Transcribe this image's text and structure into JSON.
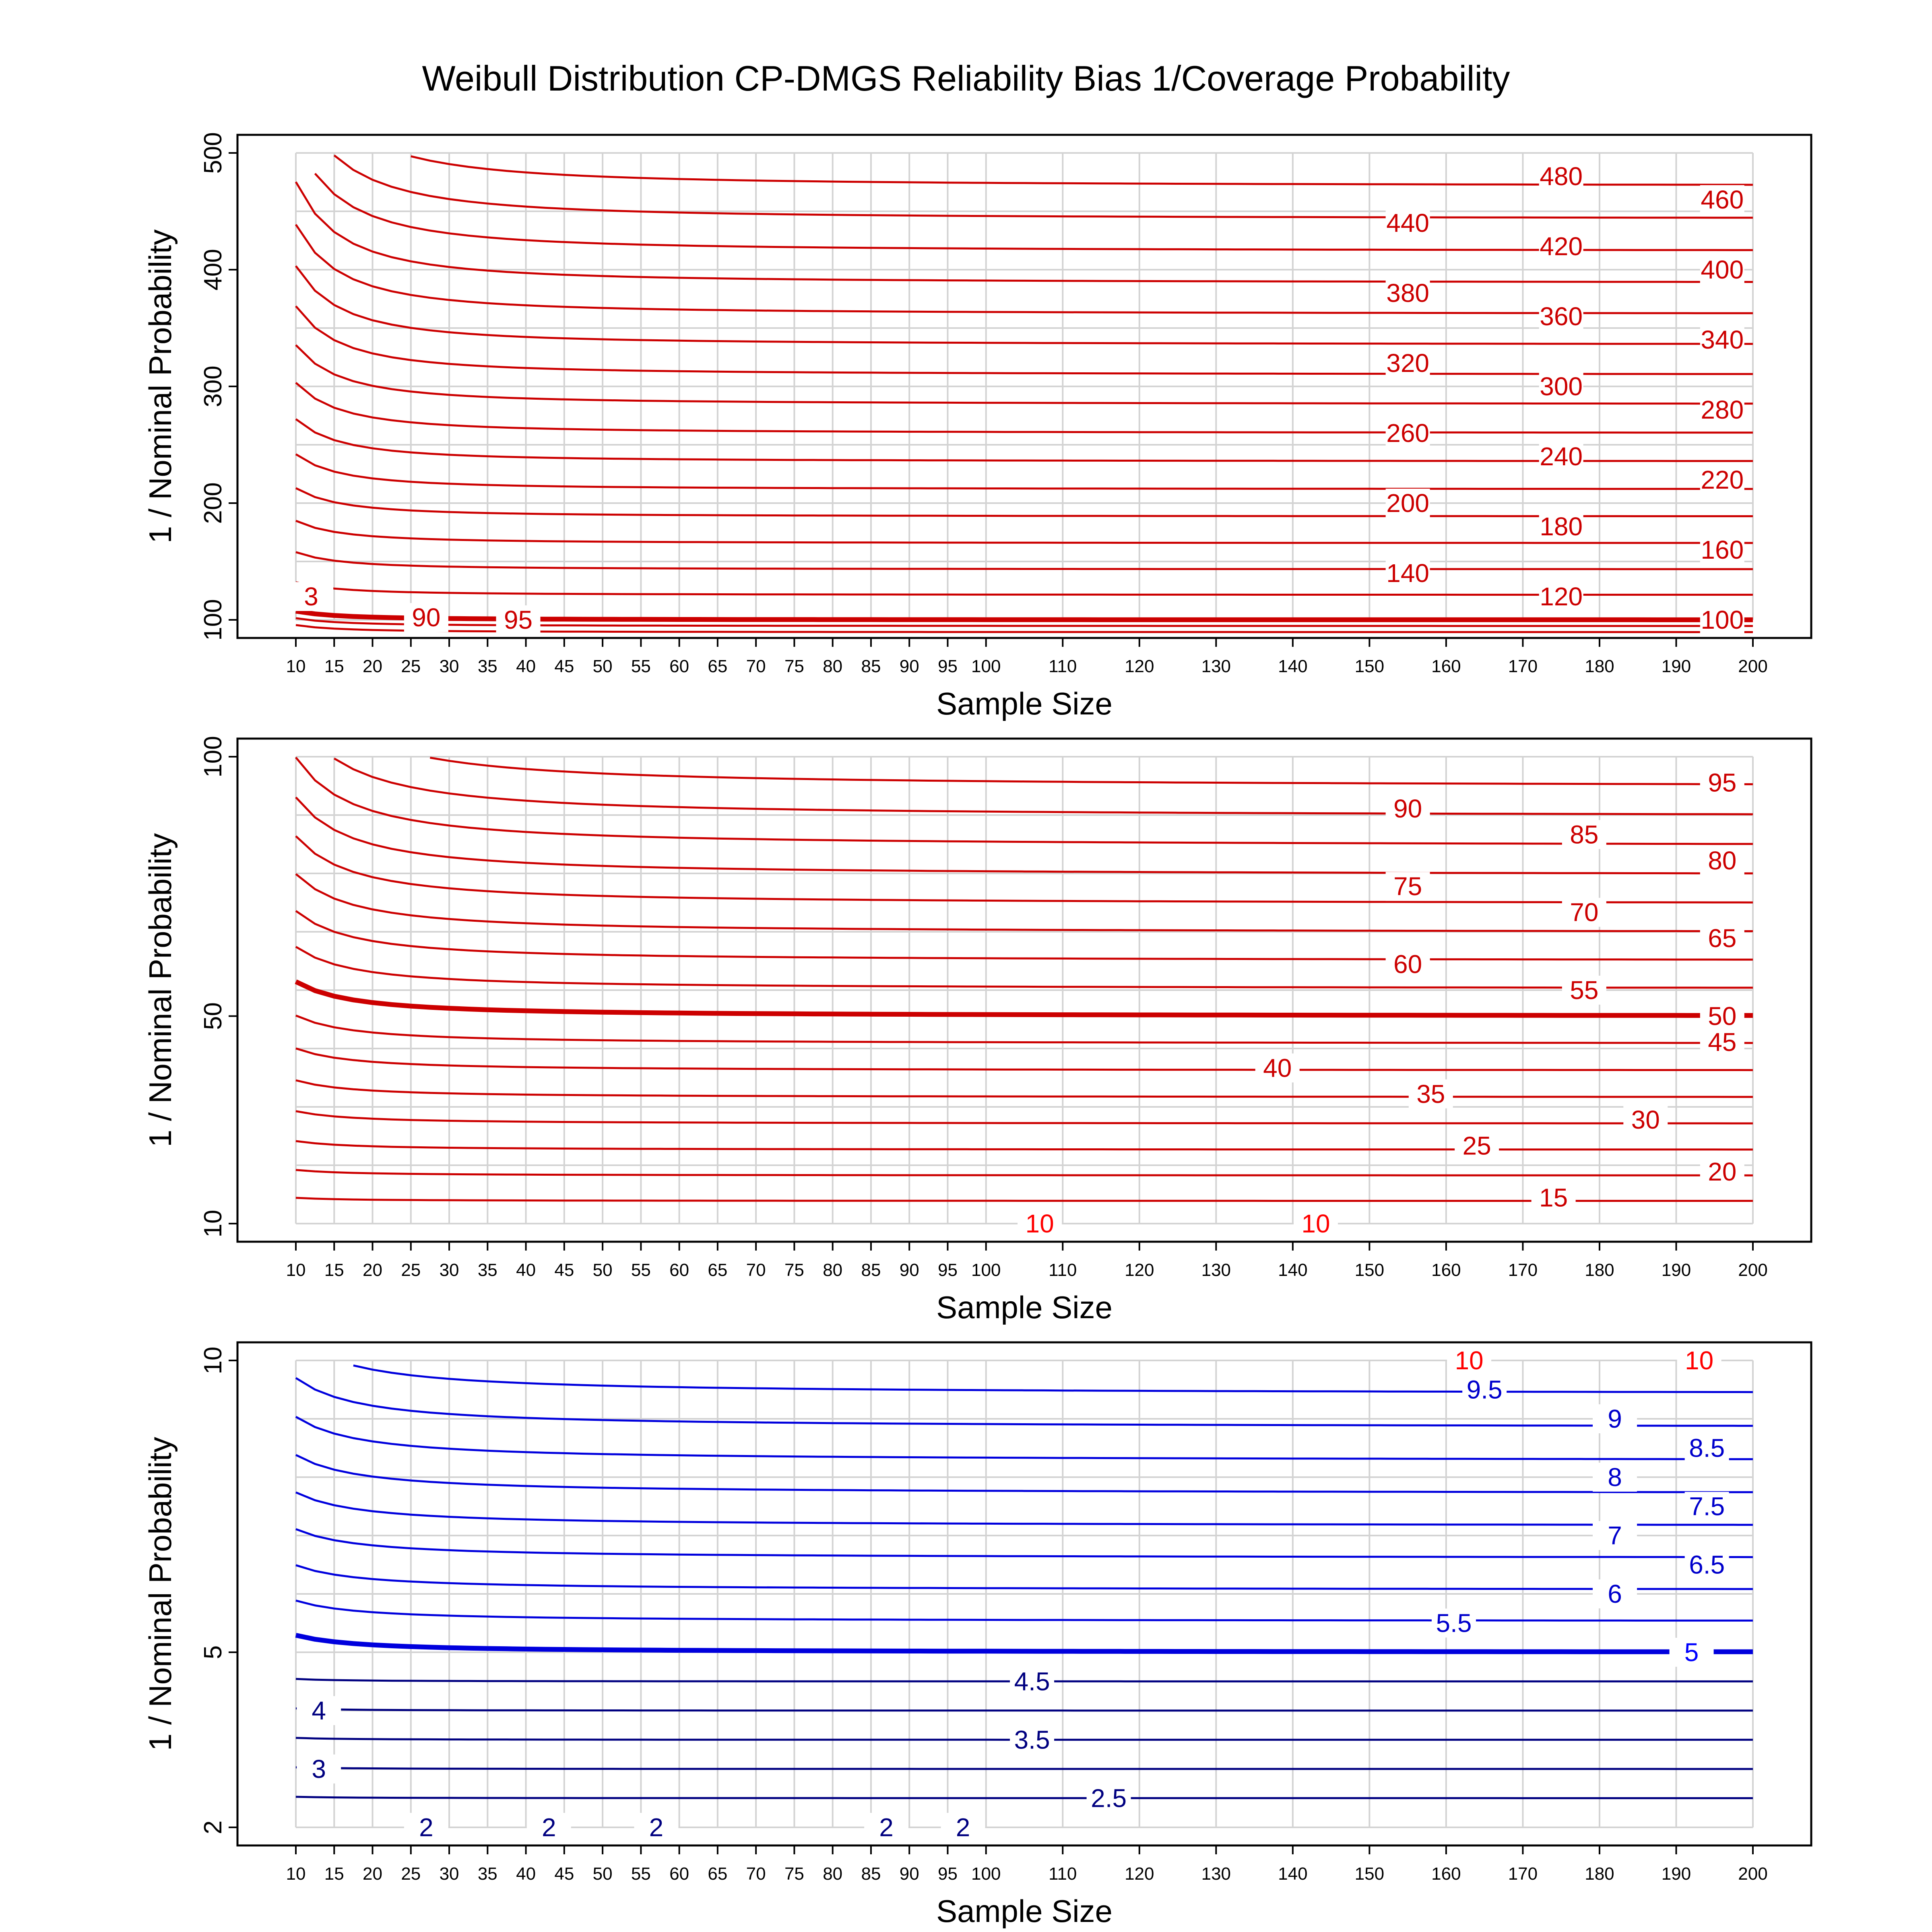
{
  "figure": {
    "title": "Weibull Distribution CP-DMGS Reliability Bias 1/Coverage Probability"
  },
  "chart_data": [
    {
      "type": "line",
      "subtype": "contour",
      "title": "",
      "xlabel": "Sample Size",
      "ylabel": "1 / Nominal Probability",
      "x_ticks": [
        10,
        15,
        20,
        25,
        30,
        35,
        40,
        45,
        50,
        55,
        60,
        65,
        70,
        75,
        80,
        85,
        90,
        95,
        100,
        110,
        120,
        130,
        140,
        150,
        160,
        170,
        180,
        190,
        200
      ],
      "xlim": [
        10,
        200
      ],
      "y_ticks": [
        100,
        200,
        300,
        400,
        500
      ],
      "ylim": [
        100,
        500
      ],
      "grid": true,
      "reference_level": 100,
      "contour_levels": [
        90,
        95,
        100,
        120,
        140,
        160,
        180,
        200,
        220,
        240,
        260,
        280,
        300,
        320,
        340,
        360,
        380,
        400,
        420,
        440,
        460,
        480
      ],
      "contour_labels": [
        {
          "text": "480",
          "x": 175,
          "y": 480,
          "color": "#cc0000"
        },
        {
          "text": "460",
          "x": 196,
          "y": 460,
          "color": "#cc0000"
        },
        {
          "text": "440",
          "x": 155,
          "y": 440,
          "color": "#cc0000"
        },
        {
          "text": "420",
          "x": 175,
          "y": 420,
          "color": "#cc0000"
        },
        {
          "text": "400",
          "x": 196,
          "y": 400,
          "color": "#cc0000"
        },
        {
          "text": "380",
          "x": 155,
          "y": 380,
          "color": "#cc0000"
        },
        {
          "text": "360",
          "x": 175,
          "y": 360,
          "color": "#cc0000"
        },
        {
          "text": "340",
          "x": 196,
          "y": 340,
          "color": "#cc0000"
        },
        {
          "text": "320",
          "x": 155,
          "y": 320,
          "color": "#cc0000"
        },
        {
          "text": "300",
          "x": 175,
          "y": 300,
          "color": "#cc0000"
        },
        {
          "text": "280",
          "x": 196,
          "y": 280,
          "color": "#cc0000"
        },
        {
          "text": "260",
          "x": 155,
          "y": 260,
          "color": "#cc0000"
        },
        {
          "text": "240",
          "x": 175,
          "y": 240,
          "color": "#cc0000"
        },
        {
          "text": "220",
          "x": 196,
          "y": 220,
          "color": "#cc0000"
        },
        {
          "text": "200",
          "x": 155,
          "y": 200,
          "color": "#cc0000"
        },
        {
          "text": "180",
          "x": 175,
          "y": 180,
          "color": "#cc0000"
        },
        {
          "text": "160",
          "x": 196,
          "y": 160,
          "color": "#cc0000"
        },
        {
          "text": "140",
          "x": 155,
          "y": 140,
          "color": "#cc0000"
        },
        {
          "text": "120",
          "x": 175,
          "y": 120,
          "color": "#cc0000"
        },
        {
          "text": "100",
          "x": 196,
          "y": 100,
          "color": "#cc0000"
        },
        {
          "text": "90",
          "x": 27,
          "y": 102,
          "color": "#cc0000"
        },
        {
          "text": "95",
          "x": 39,
          "y": 100,
          "color": "#cc0000"
        },
        {
          "text": "3",
          "x": 12,
          "y": 120,
          "color": "#cc0000"
        }
      ]
    },
    {
      "type": "line",
      "subtype": "contour",
      "title": "",
      "xlabel": "Sample Size",
      "ylabel": "1 / Nominal Probability",
      "x_ticks": [
        10,
        15,
        20,
        25,
        30,
        35,
        40,
        45,
        50,
        55,
        60,
        65,
        70,
        75,
        80,
        85,
        90,
        95,
        100,
        110,
        120,
        130,
        140,
        150,
        160,
        170,
        180,
        190,
        200
      ],
      "xlim": [
        10,
        200
      ],
      "y_ticks": [
        10,
        50,
        100
      ],
      "ylim": [
        10,
        100
      ],
      "grid": true,
      "reference_level": 50,
      "contour_levels": [
        15,
        20,
        25,
        30,
        35,
        40,
        45,
        50,
        55,
        60,
        65,
        70,
        75,
        80,
        85,
        90,
        95
      ],
      "contour_labels": [
        {
          "text": "95",
          "x": 196,
          "y": 95,
          "color": "#cc0000"
        },
        {
          "text": "90",
          "x": 155,
          "y": 90,
          "color": "#cc0000"
        },
        {
          "text": "85",
          "x": 178,
          "y": 85,
          "color": "#cc0000"
        },
        {
          "text": "80",
          "x": 196,
          "y": 80,
          "color": "#cc0000"
        },
        {
          "text": "75",
          "x": 155,
          "y": 75,
          "color": "#cc0000"
        },
        {
          "text": "70",
          "x": 178,
          "y": 70,
          "color": "#cc0000"
        },
        {
          "text": "65",
          "x": 196,
          "y": 65,
          "color": "#cc0000"
        },
        {
          "text": "60",
          "x": 155,
          "y": 60,
          "color": "#cc0000"
        },
        {
          "text": "55",
          "x": 178,
          "y": 55,
          "color": "#cc0000"
        },
        {
          "text": "50",
          "x": 196,
          "y": 50,
          "color": "#cc0000"
        },
        {
          "text": "45",
          "x": 196,
          "y": 45,
          "color": "#cc0000"
        },
        {
          "text": "40",
          "x": 138,
          "y": 40,
          "color": "#cc0000"
        },
        {
          "text": "35",
          "x": 158,
          "y": 35,
          "color": "#cc0000"
        },
        {
          "text": "30",
          "x": 186,
          "y": 30,
          "color": "#cc0000"
        },
        {
          "text": "25",
          "x": 164,
          "y": 25,
          "color": "#cc0000"
        },
        {
          "text": "20",
          "x": 196,
          "y": 20,
          "color": "#cc0000"
        },
        {
          "text": "15",
          "x": 174,
          "y": 15,
          "color": "#cc0000"
        },
        {
          "text": "10",
          "x": 107,
          "y": 10,
          "color": "#ff0000"
        },
        {
          "text": "10",
          "x": 143,
          "y": 10,
          "color": "#ff0000"
        }
      ]
    },
    {
      "type": "line",
      "subtype": "contour",
      "title": "",
      "xlabel": "Sample Size",
      "ylabel": "1 / Nominal Probability",
      "x_ticks": [
        10,
        15,
        20,
        25,
        30,
        35,
        40,
        45,
        50,
        55,
        60,
        65,
        70,
        75,
        80,
        85,
        90,
        95,
        100,
        110,
        120,
        130,
        140,
        150,
        160,
        170,
        180,
        190,
        200
      ],
      "xlim": [
        10,
        200
      ],
      "y_ticks": [
        2,
        5,
        10
      ],
      "ylim": [
        2,
        10
      ],
      "grid": true,
      "reference_level": 5,
      "contour_levels": [
        2.5,
        3,
        3.5,
        4,
        4.5,
        5,
        5.5,
        6,
        6.5,
        7,
        7.5,
        8,
        8.5,
        9,
        9.5
      ],
      "contour_labels": [
        {
          "text": "10",
          "x": 163,
          "y": 10,
          "color": "#ff0000"
        },
        {
          "text": "10",
          "x": 193,
          "y": 10,
          "color": "#ff0000"
        },
        {
          "text": "9.5",
          "x": 165,
          "y": 9.5,
          "color": "#0000cc"
        },
        {
          "text": "9",
          "x": 182,
          "y": 9,
          "color": "#0000cc"
        },
        {
          "text": "8.5",
          "x": 194,
          "y": 8.5,
          "color": "#0000cc"
        },
        {
          "text": "8",
          "x": 182,
          "y": 8,
          "color": "#0000cc"
        },
        {
          "text": "7.5",
          "x": 194,
          "y": 7.5,
          "color": "#0000cc"
        },
        {
          "text": "7",
          "x": 182,
          "y": 7,
          "color": "#0000cc"
        },
        {
          "text": "6.5",
          "x": 194,
          "y": 6.5,
          "color": "#0000cc"
        },
        {
          "text": "6",
          "x": 182,
          "y": 6,
          "color": "#0000cc"
        },
        {
          "text": "5.5",
          "x": 161,
          "y": 5.5,
          "color": "#0000cc"
        },
        {
          "text": "5",
          "x": 192,
          "y": 5,
          "color": "#0000ff"
        },
        {
          "text": "4.5",
          "x": 106,
          "y": 4.5,
          "color": "#000080"
        },
        {
          "text": "4",
          "x": 13,
          "y": 4,
          "color": "#000080"
        },
        {
          "text": "3.5",
          "x": 106,
          "y": 3.5,
          "color": "#000080"
        },
        {
          "text": "3",
          "x": 13,
          "y": 3,
          "color": "#000080"
        },
        {
          "text": "2.5",
          "x": 116,
          "y": 2.5,
          "color": "#000080"
        },
        {
          "text": "2",
          "x": 27,
          "y": 2,
          "color": "#000080"
        },
        {
          "text": "2",
          "x": 43,
          "y": 2,
          "color": "#000080"
        },
        {
          "text": "2",
          "x": 57,
          "y": 2,
          "color": "#000080"
        },
        {
          "text": "2",
          "x": 87,
          "y": 2,
          "color": "#000080"
        },
        {
          "text": "2",
          "x": 97,
          "y": 2,
          "color": "#000080"
        }
      ]
    }
  ],
  "colors": {
    "red_contour": "#cc0000",
    "bright_red": "#ff0000",
    "blue_contour": "#0000dd",
    "navy_contour": "#000080",
    "bright_blue": "#0000ff",
    "grid": "#d3d3d3"
  }
}
